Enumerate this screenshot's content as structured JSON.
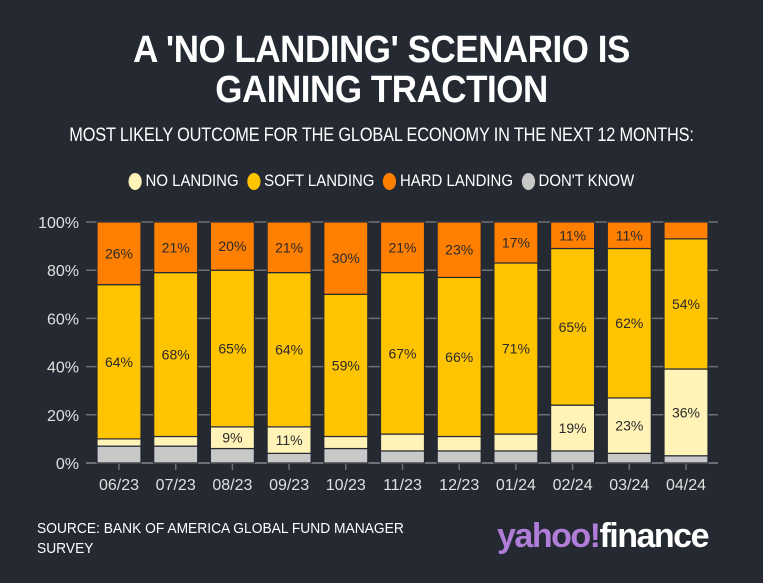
{
  "title_lines": [
    "A 'NO LANDING' SCENARIO IS",
    "GAINING TRACTION"
  ],
  "subtitle": "MOST LIKELY OUTCOME FOR THE GLOBAL ECONOMY IN THE NEXT 12 MONTHS:",
  "source": "SOURCE: BANK OF AMERICA GLOBAL FUND MANAGER SURVEY",
  "logo": {
    "part1": "yahoo!",
    "part2": "finance"
  },
  "colors": {
    "background": "#242932",
    "no_landing": "#fff3b8",
    "soft_landing": "#ffc400",
    "hard_landing": "#ff7f00",
    "dont_know": "#c8c8c8",
    "grid": "#6e7075"
  },
  "chart_data": {
    "type": "bar",
    "stacked": true,
    "title": "A 'NO LANDING' SCENARIO IS GAINING TRACTION",
    "subtitle": "MOST LIKELY OUTCOME FOR THE GLOBAL ECONOMY IN THE NEXT 12 MONTHS:",
    "categories": [
      "06/23",
      "07/23",
      "08/23",
      "09/23",
      "10/23",
      "11/23",
      "12/23",
      "01/24",
      "02/24",
      "03/24",
      "04/24"
    ],
    "series": [
      {
        "name": "DON'T KNOW",
        "key": "dont_know",
        "values": [
          7,
          7,
          6,
          4,
          6,
          5,
          5,
          5,
          5,
          4,
          3
        ],
        "labels": [
          "",
          "",
          "",
          "",
          "",
          "",
          "",
          "",
          "",
          "",
          ""
        ]
      },
      {
        "name": "NO LANDING",
        "key": "no_landing",
        "values": [
          3,
          4,
          9,
          11,
          5,
          7,
          6,
          7,
          19,
          23,
          36
        ],
        "labels": [
          "",
          "",
          "9%",
          "11%",
          "",
          "",
          "",
          "",
          "19%",
          "23%",
          "36%"
        ]
      },
      {
        "name": "SOFT LANDING",
        "key": "soft_landing",
        "values": [
          64,
          68,
          65,
          64,
          59,
          67,
          66,
          71,
          65,
          62,
          54
        ],
        "labels": [
          "64%",
          "68%",
          "65%",
          "64%",
          "59%",
          "67%",
          "66%",
          "71%",
          "65%",
          "62%",
          "54%"
        ]
      },
      {
        "name": "HARD LANDING",
        "key": "hard_landing",
        "values": [
          26,
          21,
          20,
          21,
          30,
          21,
          23,
          17,
          11,
          11,
          7
        ],
        "labels": [
          "26%",
          "21%",
          "20%",
          "21%",
          "30%",
          "21%",
          "23%",
          "17%",
          "11%",
          "11%",
          ""
        ]
      }
    ],
    "legend": [
      "NO LANDING",
      "SOFT LANDING",
      "HARD LANDING",
      "DON'T KNOW"
    ],
    "legend_position": "top",
    "yticks": [
      "0%",
      "20%",
      "40%",
      "60%",
      "80%",
      "100%"
    ],
    "ylim": [
      0,
      100
    ],
    "grid": true,
    "xlabel": "",
    "ylabel": ""
  }
}
